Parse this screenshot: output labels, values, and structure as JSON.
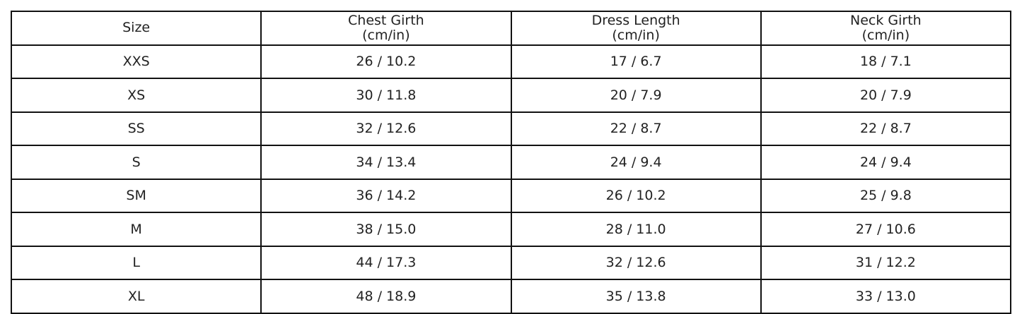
{
  "chart_data": {
    "type": "table",
    "columns": [
      {
        "line1": "Size",
        "line2": ""
      },
      {
        "line1": "Chest Girth",
        "line2": "(cm/in)"
      },
      {
        "line1": "Dress Length",
        "line2": "(cm/in)"
      },
      {
        "line1": "Neck Girth",
        "line2": "(cm/in)"
      }
    ],
    "rows": [
      [
        "XXS",
        "26 / 10.2",
        "17 / 6.7",
        "18 / 7.1"
      ],
      [
        "XS",
        "30 / 11.8",
        "20 / 7.9",
        "20 / 7.9"
      ],
      [
        "SS",
        "32 / 12.6",
        "22 / 8.7",
        "22 / 8.7"
      ],
      [
        "S",
        "34 / 13.4",
        "24 / 9.4",
        "24 / 9.4"
      ],
      [
        "SM",
        "36 / 14.2",
        "26 / 10.2",
        "25 / 9.8"
      ],
      [
        "M",
        "38 / 15.0",
        "28 / 11.0",
        "27 / 10.6"
      ],
      [
        "L",
        "44 / 17.3",
        "32 / 12.6",
        "31 / 12.2"
      ],
      [
        "XL",
        "48 / 18.9",
        "35 / 13.8",
        "33 / 13.0"
      ]
    ]
  }
}
